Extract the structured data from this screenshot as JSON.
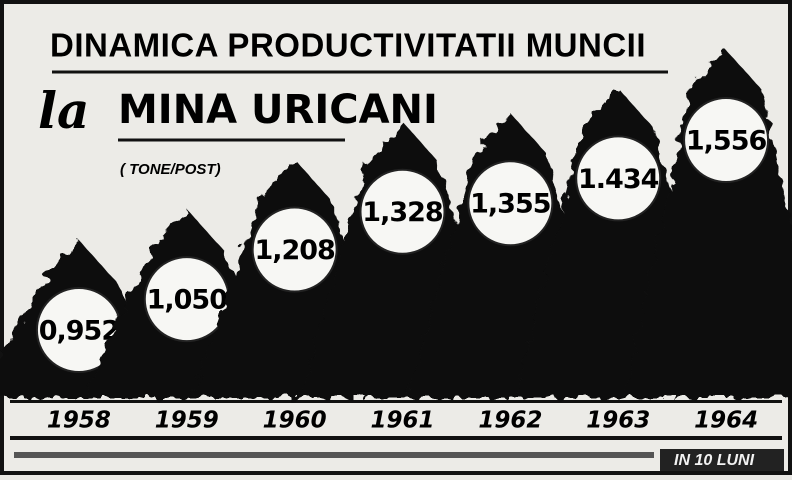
{
  "chart_data": {
    "type": "bar",
    "title": "DINAMICA PRODUCTIVITATII MUNCII",
    "subtitle": [
      "la",
      "MINA URICANI"
    ],
    "unit": "( TONE/POST)",
    "categories": [
      "1958",
      "1959",
      "1960",
      "1961",
      "1962",
      "1963",
      "1964"
    ],
    "values": [
      0.952,
      1.05,
      1.208,
      1.328,
      1.355,
      1.434,
      1.556
    ],
    "value_labels": [
      "0,952",
      "1,050",
      "1,208",
      "1,328",
      "1,355",
      "1.434",
      "1,556"
    ],
    "color": "#111111",
    "annotation": "IN 10 LUNI"
  }
}
